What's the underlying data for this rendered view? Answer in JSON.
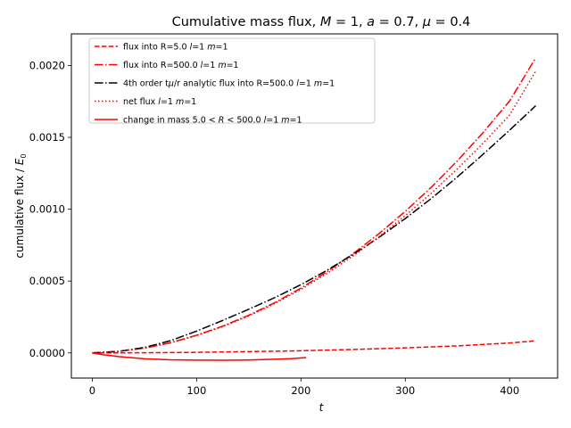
{
  "chart_data": {
    "type": "line",
    "title": "Cumulative mass flux, M = 1, a = 0.7, μ = 0.4",
    "title_parts": {
      "prefix": "Cumulative mass flux, ",
      "M_sym": "M",
      "M_val": " = 1, ",
      "a_sym": "a",
      "a_val": " = 0.7, ",
      "mu_sym": "μ",
      "mu_val": " = 0.4"
    },
    "xlabel": "t",
    "ylabel_parts": {
      "text": "cumulative flux / ",
      "E": "E",
      "sub": "0"
    },
    "xlim": [
      -20,
      446
    ],
    "ylim": [
      -0.000175,
      0.00222
    ],
    "xticks": [
      0,
      100,
      200,
      300,
      400
    ],
    "xtick_labels": [
      "0",
      "100",
      "200",
      "300",
      "400"
    ],
    "yticks": [
      0,
      0.0005,
      0.001,
      0.0015,
      0.002
    ],
    "ytick_labels": [
      "0.0000",
      "0.0005",
      "0.0010",
      "0.0015",
      "0.0020"
    ],
    "grid": false,
    "legend_position": "top-left",
    "series": [
      {
        "name": "flux into R=5.0 l=1 m=1",
        "color": "#ff0000",
        "dash": "dashed",
        "x": [
          0,
          50,
          100,
          150,
          200,
          250,
          300,
          350,
          400,
          425
        ],
        "y": [
          0,
          1e-06,
          4e-06,
          9e-06,
          1.5e-05,
          2.4e-05,
          3.5e-05,
          4.9e-05,
          6.9e-05,
          8.4e-05
        ]
      },
      {
        "name": "flux into R=500.0 l=1 m=1",
        "color": "#ff0000",
        "dash": "dashdot",
        "x": [
          0,
          25,
          50,
          75,
          100,
          125,
          150,
          175,
          200,
          225,
          250,
          275,
          300,
          325,
          350,
          375,
          400,
          425
        ],
        "y": [
          0,
          1.1e-05,
          3.3e-05,
          7.1e-05,
          0.000123,
          0.000186,
          0.000262,
          0.00035,
          0.000451,
          0.000565,
          0.000691,
          0.000831,
          0.000985,
          0.001153,
          0.001337,
          0.001537,
          0.001753,
          0.002053
        ]
      },
      {
        "name": "4th order tμ/r analytic flux into R=500.0 l=1 m=1",
        "color": "#000000",
        "dash": "dashdot",
        "x": [
          0,
          25,
          50,
          75,
          100,
          125,
          150,
          175,
          200,
          225,
          250,
          275,
          300,
          325,
          350,
          375,
          400,
          425
        ],
        "y": [
          0,
          1e-05,
          3.8e-05,
          8.5e-05,
          0.000152,
          0.000226,
          0.000304,
          0.000385,
          0.000475,
          0.000575,
          0.000685,
          0.000805,
          0.000935,
          0.001075,
          0.001225,
          0.001385,
          0.00155,
          0.00172
        ]
      },
      {
        "name": "net flux l=1 m=1",
        "color": "#ff0000",
        "dash": "dotted",
        "x": [
          0,
          25,
          50,
          75,
          100,
          125,
          150,
          175,
          200,
          225,
          250,
          275,
          300,
          325,
          350,
          375,
          400,
          425
        ],
        "y": [
          0,
          1.1e-05,
          3.3e-05,
          7e-05,
          0.000121,
          0.000183,
          0.000257,
          0.000344,
          0.000442,
          0.000553,
          0.000675,
          0.000809,
          0.000955,
          0.001112,
          0.001281,
          0.001462,
          0.001655,
          0.00196
        ]
      },
      {
        "name": "change in mass 5.0 < R < 500.0 l=1 m=1",
        "color": "#ff0000",
        "dash": "solid",
        "x": [
          0,
          10,
          25,
          50,
          75,
          100,
          125,
          150,
          175,
          190,
          205
        ],
        "y": [
          0,
          -1.2e-05,
          -2.5e-05,
          -4.1e-05,
          -4.8e-05,
          -5e-05,
          -5.1e-05,
          -4.9e-05,
          -4.4e-05,
          -4e-05,
          -3.2e-05
        ]
      }
    ],
    "legend_items": [
      {
        "dash": "dashed",
        "color": "#ff0000",
        "parts": [
          [
            "flux into R=5.0 ",
            ""
          ],
          [
            "l",
            "i"
          ],
          [
            "=1 ",
            ""
          ],
          [
            "m",
            "i"
          ],
          [
            "=1",
            ""
          ]
        ]
      },
      {
        "dash": "dashdot",
        "color": "#ff0000",
        "parts": [
          [
            "flux into R=500.0 ",
            ""
          ],
          [
            "l",
            "i"
          ],
          [
            "=1 ",
            ""
          ],
          [
            "m",
            "i"
          ],
          [
            "=1",
            ""
          ]
        ]
      },
      {
        "dash": "dashdot",
        "color": "#000000",
        "parts": [
          [
            "4th order t",
            ""
          ],
          [
            "μ",
            "i"
          ],
          [
            "/r analytic flux into R=500.0 ",
            ""
          ],
          [
            "l",
            "i"
          ],
          [
            "=1 ",
            ""
          ],
          [
            "m",
            "i"
          ],
          [
            "=1",
            ""
          ]
        ]
      },
      {
        "dash": "dotted",
        "color": "#ff0000",
        "parts": [
          [
            "net flux ",
            ""
          ],
          [
            "l",
            "i"
          ],
          [
            "=1 ",
            ""
          ],
          [
            "m",
            "i"
          ],
          [
            "=1",
            ""
          ]
        ]
      },
      {
        "dash": "solid",
        "color": "#ff0000",
        "parts": [
          [
            "change in mass 5.0 < ",
            ""
          ],
          [
            "R",
            "i"
          ],
          [
            " < 500.0 ",
            ""
          ],
          [
            "l",
            "i"
          ],
          [
            "=1 ",
            ""
          ],
          [
            "m",
            "i"
          ],
          [
            "=1",
            ""
          ]
        ]
      }
    ]
  }
}
